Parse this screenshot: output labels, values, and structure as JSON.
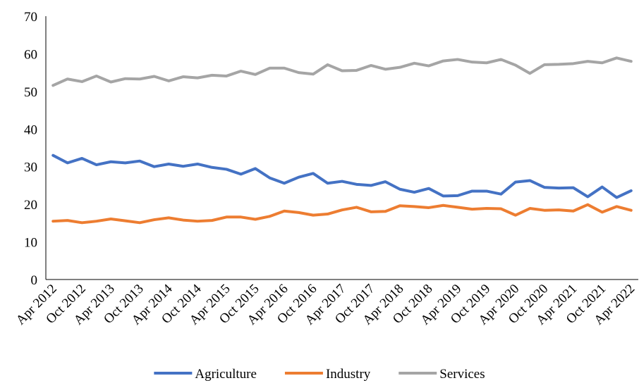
{
  "chart_data": {
    "type": "line",
    "categories": [
      "Apr 2012",
      null,
      "Oct 2012",
      null,
      "Apr 2013",
      null,
      "Oct 2013",
      null,
      "Apr 2014",
      null,
      "Oct 2014",
      null,
      "Apr 2015",
      null,
      "Oct 2015",
      null,
      "Apr 2016",
      null,
      "Oct 2016",
      null,
      "Apr 2017",
      null,
      "Oct 2017",
      null,
      "Apr 2018",
      null,
      "Oct 2018",
      null,
      "Apr 2019",
      null,
      "Oct 2019",
      null,
      "Apr 2020",
      null,
      "Oct 2020",
      null,
      "Apr 2021",
      null,
      "Oct 2021",
      null,
      "Apr 2022"
    ],
    "series": [
      {
        "name": "Agriculture",
        "color": "#4472c4",
        "values": [
          33,
          31,
          32.2,
          30.5,
          31.3,
          31,
          31.5,
          30,
          30.7,
          30.1,
          30.7,
          29.8,
          29.3,
          28,
          29.5,
          27,
          25.6,
          27.2,
          28.2,
          25.6,
          26.1,
          25.3,
          25,
          26,
          24,
          23.2,
          24.2,
          22.2,
          22.3,
          23.5,
          23.5,
          22.7,
          25.9,
          26.3,
          24.5,
          24.3,
          24.4,
          22,
          24.6,
          21.8,
          23.6
        ]
      },
      {
        "name": "Industry",
        "color": "#ed7d31",
        "values": [
          15.5,
          15.7,
          15.1,
          15.5,
          16.1,
          15.6,
          15.1,
          15.9,
          16.4,
          15.8,
          15.5,
          15.7,
          16.6,
          16.6,
          16,
          16.8,
          18.2,
          17.8,
          17.1,
          17.4,
          18.5,
          19.2,
          18,
          18.1,
          19.6,
          19.4,
          19.1,
          19.7,
          19.2,
          18.7,
          18.9,
          18.8,
          17.1,
          18.9,
          18.4,
          18.5,
          18.2,
          19.9,
          17.9,
          19.4,
          18.4
        ]
      },
      {
        "name": "Services",
        "color": "#a5a5a5",
        "values": [
          51.6,
          53.3,
          52.6,
          54.1,
          52.5,
          53.4,
          53.3,
          54,
          52.8,
          53.9,
          53.6,
          54.3,
          54.1,
          55.4,
          54.5,
          56.2,
          56.2,
          55,
          54.6,
          57.1,
          55.5,
          55.6,
          56.9,
          55.9,
          56.4,
          57.5,
          56.8,
          58.1,
          58.5,
          57.8,
          57.6,
          58.5,
          57,
          54.8,
          57.1,
          57.2,
          57.4,
          58,
          57.6,
          58.9,
          58
        ]
      }
    ],
    "ylim": [
      0,
      70
    ],
    "yticks": [
      0,
      10,
      20,
      30,
      40,
      50,
      60,
      70
    ],
    "grid": false,
    "legend": "bottom"
  }
}
